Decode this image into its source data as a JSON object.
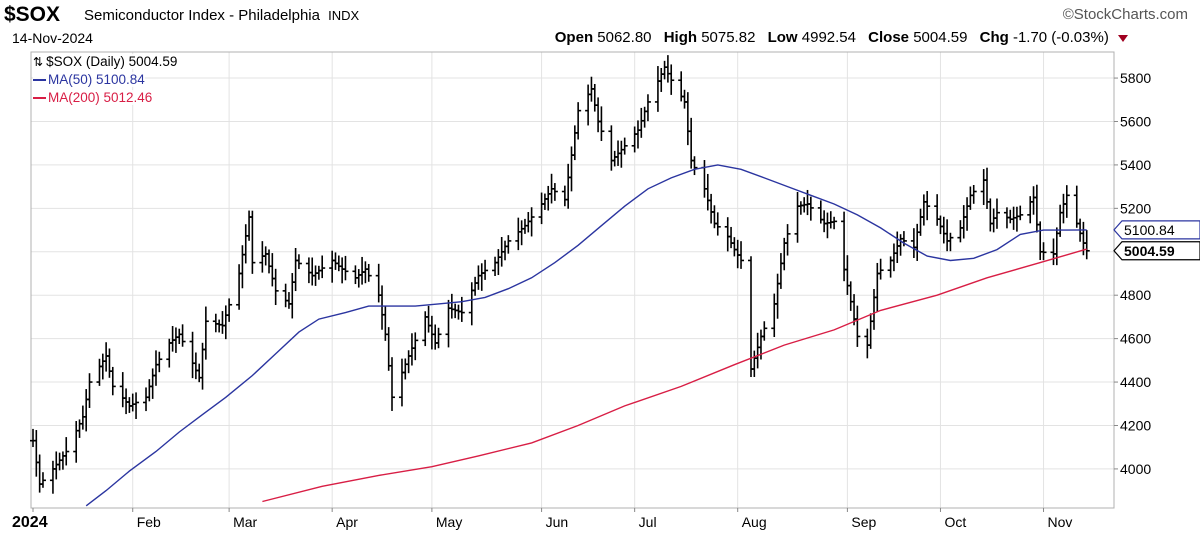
{
  "header": {
    "symbol": "$SOX",
    "name": "Semiconductor Index - Philadelphia",
    "exchange": "INDX",
    "watermark": "StockCharts.com",
    "date": "14-Nov-2024",
    "open_label": "Open",
    "open": "5062.80",
    "high_label": "High",
    "high": "5075.82",
    "low_label": "Low",
    "low": "4992.54",
    "close_label": "Close",
    "close": "5004.59",
    "chg_label": "Chg",
    "chg": "-1.70 (-0.03%)"
  },
  "legend": {
    "price": "$SOX (Daily) 5004.59",
    "ma50": "MA(50) 5100.84",
    "ma200": "MA(200) 5012.46"
  },
  "colors": {
    "ma50": "#2b35a0",
    "ma200": "#d81e45",
    "bars": "#000000",
    "grid": "#e3e3e3",
    "chg": "#a00020"
  },
  "chart_data": {
    "type": "ohlc",
    "y_ticks": [
      4000,
      4200,
      4400,
      4600,
      4800,
      5000,
      5200,
      5400,
      5600,
      5800
    ],
    "ylim": [
      3820,
      5920
    ],
    "x_tick_labels": [
      "2024",
      "Feb",
      "Mar",
      "Apr",
      "May",
      "Jun",
      "Jul",
      "Aug",
      "Sep",
      "Oct",
      "Nov"
    ],
    "x_tick_dates": [
      "2024-01-02",
      "2024-02-01",
      "2024-03-01",
      "2024-04-01",
      "2024-05-01",
      "2024-06-03",
      "2024-07-01",
      "2024-08-01",
      "2024-09-03",
      "2024-10-01",
      "2024-11-01"
    ],
    "last_values": {
      "ma50": "5100.84",
      "close": "5004.59"
    },
    "anchors": [
      [
        "2024-01-02",
        4130
      ],
      [
        "2024-01-04",
        3930
      ],
      [
        "2024-01-08",
        4000
      ],
      [
        "2024-01-12",
        4080
      ],
      [
        "2024-01-17",
        4240
      ],
      [
        "2024-01-19",
        4400
      ],
      [
        "2024-01-24",
        4520
      ],
      [
        "2024-01-26",
        4380
      ],
      [
        "2024-01-31",
        4290
      ],
      [
        "2024-02-05",
        4330
      ],
      [
        "2024-02-08",
        4480
      ],
      [
        "2024-02-12",
        4580
      ],
      [
        "2024-02-15",
        4620
      ],
      [
        "2024-02-21",
        4420
      ],
      [
        "2024-02-23",
        4680
      ],
      [
        "2024-02-28",
        4660
      ],
      [
        "2024-03-04",
        4900
      ],
      [
        "2024-03-07",
        5160
      ],
      [
        "2024-03-08",
        4950
      ],
      [
        "2024-03-12",
        4990
      ],
      [
        "2024-03-15",
        4820
      ],
      [
        "2024-03-19",
        4760
      ],
      [
        "2024-03-21",
        4960
      ],
      [
        "2024-03-26",
        4890
      ],
      [
        "2024-04-01",
        4960
      ],
      [
        "2024-04-04",
        4920
      ],
      [
        "2024-04-08",
        4880
      ],
      [
        "2024-04-11",
        4920
      ],
      [
        "2024-04-15",
        4800
      ],
      [
        "2024-04-17",
        4620
      ],
      [
        "2024-04-19",
        4330
      ],
      [
        "2024-04-24",
        4520
      ],
      [
        "2024-04-29",
        4700
      ],
      [
        "2024-05-02",
        4580
      ],
      [
        "2024-05-06",
        4740
      ],
      [
        "2024-05-10",
        4720
      ],
      [
        "2024-05-15",
        4890
      ],
      [
        "2024-05-20",
        4950
      ],
      [
        "2024-05-24",
        5050
      ],
      [
        "2024-05-29",
        5120
      ],
      [
        "2024-06-03",
        5220
      ],
      [
        "2024-06-06",
        5290
      ],
      [
        "2024-06-10",
        5240
      ],
      [
        "2024-06-14",
        5650
      ],
      [
        "2024-06-18",
        5750
      ],
      [
        "2024-06-20",
        5600
      ],
      [
        "2024-06-24",
        5420
      ],
      [
        "2024-06-27",
        5470
      ],
      [
        "2024-07-02",
        5560
      ],
      [
        "2024-07-05",
        5690
      ],
      [
        "2024-07-10",
        5850
      ],
      [
        "2024-07-12",
        5790
      ],
      [
        "2024-07-16",
        5690
      ],
      [
        "2024-07-18",
        5420
      ],
      [
        "2024-07-22",
        5290
      ],
      [
        "2024-07-25",
        5130
      ],
      [
        "2024-07-29",
        5070
      ],
      [
        "2024-07-31",
        5010
      ],
      [
        "2024-08-02",
        4960
      ],
      [
        "2024-08-05",
        4460
      ],
      [
        "2024-08-08",
        4610
      ],
      [
        "2024-08-12",
        4760
      ],
      [
        "2024-08-15",
        5040
      ],
      [
        "2024-08-19",
        5210
      ],
      [
        "2024-08-22",
        5220
      ],
      [
        "2024-08-27",
        5130
      ],
      [
        "2024-08-30",
        5140
      ],
      [
        "2024-09-04",
        4770
      ],
      [
        "2024-09-06",
        4610
      ],
      [
        "2024-09-09",
        4570
      ],
      [
        "2024-09-12",
        4900
      ],
      [
        "2024-09-16",
        4960
      ],
      [
        "2024-09-19",
        5060
      ],
      [
        "2024-09-23",
        5020
      ],
      [
        "2024-09-26",
        5230
      ],
      [
        "2024-09-30",
        5150
      ],
      [
        "2024-10-03",
        5050
      ],
      [
        "2024-10-07",
        5110
      ],
      [
        "2024-10-10",
        5260
      ],
      [
        "2024-10-14",
        5330
      ],
      [
        "2024-10-16",
        5130
      ],
      [
        "2024-10-18",
        5180
      ],
      [
        "2024-10-22",
        5150
      ],
      [
        "2024-10-25",
        5170
      ],
      [
        "2024-10-29",
        5250
      ],
      [
        "2024-10-31",
        5000
      ],
      [
        "2024-11-04",
        4990
      ],
      [
        "2024-11-06",
        5180
      ],
      [
        "2024-11-08",
        5260
      ],
      [
        "2024-11-11",
        5130
      ],
      [
        "2024-11-13",
        5040
      ],
      [
        "2024-11-14",
        5004.59
      ]
    ],
    "ma50_points": [
      [
        "2024-01-18",
        3830
      ],
      [
        "2024-01-24",
        3900
      ],
      [
        "2024-01-31",
        3990
      ],
      [
        "2024-02-08",
        4080
      ],
      [
        "2024-02-15",
        4170
      ],
      [
        "2024-02-22",
        4250
      ],
      [
        "2024-02-29",
        4330
      ],
      [
        "2024-03-08",
        4430
      ],
      [
        "2024-03-15",
        4530
      ],
      [
        "2024-03-22",
        4630
      ],
      [
        "2024-03-28",
        4690
      ],
      [
        "2024-04-05",
        4720
      ],
      [
        "2024-04-12",
        4750
      ],
      [
        "2024-04-19",
        4750
      ],
      [
        "2024-04-26",
        4750
      ],
      [
        "2024-05-03",
        4760
      ],
      [
        "2024-05-10",
        4770
      ],
      [
        "2024-05-17",
        4790
      ],
      [
        "2024-05-24",
        4830
      ],
      [
        "2024-05-31",
        4880
      ],
      [
        "2024-06-07",
        4950
      ],
      [
        "2024-06-14",
        5030
      ],
      [
        "2024-06-21",
        5120
      ],
      [
        "2024-06-28",
        5210
      ],
      [
        "2024-07-05",
        5290
      ],
      [
        "2024-07-12",
        5340
      ],
      [
        "2024-07-19",
        5380
      ],
      [
        "2024-07-26",
        5400
      ],
      [
        "2024-08-02",
        5380
      ],
      [
        "2024-08-09",
        5340
      ],
      [
        "2024-08-16",
        5300
      ],
      [
        "2024-08-23",
        5260
      ],
      [
        "2024-08-30",
        5220
      ],
      [
        "2024-09-06",
        5170
      ],
      [
        "2024-09-13",
        5110
      ],
      [
        "2024-09-20",
        5040
      ],
      [
        "2024-09-27",
        4980
      ],
      [
        "2024-10-04",
        4960
      ],
      [
        "2024-10-11",
        4970
      ],
      [
        "2024-10-18",
        5010
      ],
      [
        "2024-10-25",
        5080
      ],
      [
        "2024-11-01",
        5100
      ],
      [
        "2024-11-08",
        5100
      ],
      [
        "2024-11-14",
        5100.84
      ]
    ],
    "ma200_points": [
      [
        "2024-03-11",
        3850
      ],
      [
        "2024-03-29",
        3920
      ],
      [
        "2024-04-15",
        3970
      ],
      [
        "2024-05-01",
        4010
      ],
      [
        "2024-05-15",
        4060
      ],
      [
        "2024-05-31",
        4120
      ],
      [
        "2024-06-14",
        4200
      ],
      [
        "2024-06-28",
        4290
      ],
      [
        "2024-07-15",
        4380
      ],
      [
        "2024-07-31",
        4480
      ],
      [
        "2024-08-15",
        4570
      ],
      [
        "2024-08-30",
        4640
      ],
      [
        "2024-09-13",
        4730
      ],
      [
        "2024-09-30",
        4800
      ],
      [
        "2024-10-15",
        4880
      ],
      [
        "2024-10-31",
        4950
      ],
      [
        "2024-11-14",
        5012.46
      ]
    ]
  }
}
